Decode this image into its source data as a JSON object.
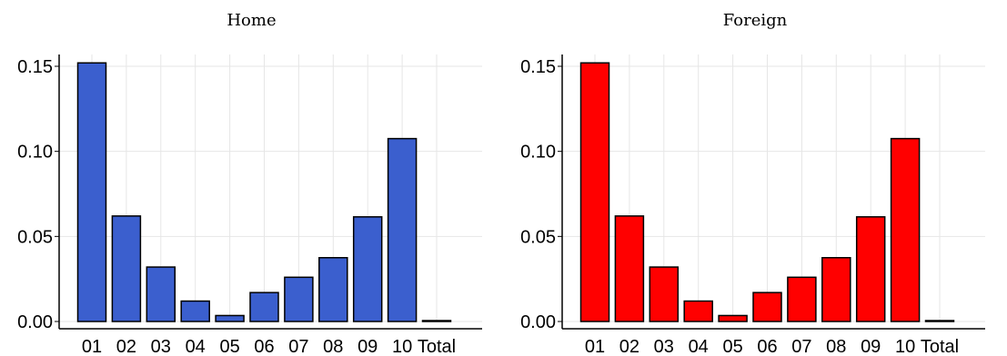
{
  "chart_data": [
    {
      "type": "bar",
      "title": "Home",
      "categories": [
        "01",
        "02",
        "03",
        "04",
        "05",
        "06",
        "07",
        "08",
        "09",
        "10",
        "Total"
      ],
      "values": [
        0.152,
        0.062,
        0.032,
        0.012,
        0.0035,
        0.017,
        0.026,
        0.0375,
        0.0615,
        0.1075,
        0.0005
      ],
      "ylim": [
        0,
        0.155
      ],
      "yticks": [
        "0.00",
        "0.05",
        "0.10",
        "0.15"
      ],
      "bar_color": "#3b5fce",
      "grid": true,
      "legend": "none"
    },
    {
      "type": "bar",
      "title": "Foreign",
      "categories": [
        "01",
        "02",
        "03",
        "04",
        "05",
        "06",
        "07",
        "08",
        "09",
        "10",
        "Total"
      ],
      "values": [
        0.152,
        0.062,
        0.032,
        0.012,
        0.0035,
        0.017,
        0.026,
        0.0375,
        0.0615,
        0.1075,
        0.0005
      ],
      "ylim": [
        0,
        0.155
      ],
      "yticks": [
        "0.00",
        "0.05",
        "0.10",
        "0.15"
      ],
      "bar_color": "#ff0000",
      "grid": true,
      "legend": "none"
    }
  ]
}
